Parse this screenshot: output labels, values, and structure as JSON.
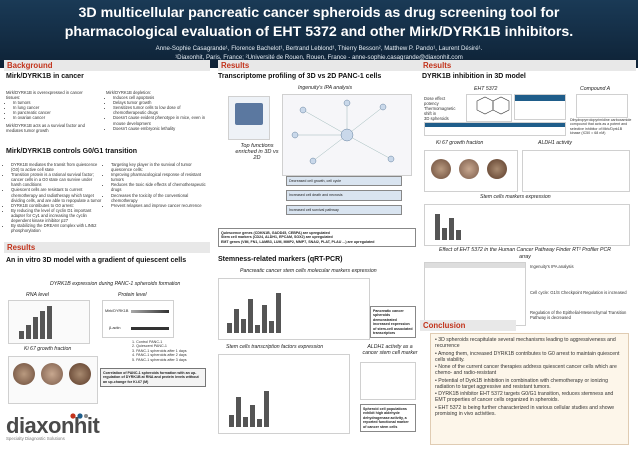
{
  "header": {
    "title_line1": "3D multicellular pancreatic cancer spheroids as drug screening tool for",
    "title_line2": "pharmacological evaluation of EHT 5372 and other Mirk/DYRK1B inhibitors.",
    "authors": "Anne-Sophie Casagrande¹, Florence Bachelot¹, Bertrand Leblond¹, Thierry Besson², Matthew P. Pando¹, Laurent Désiré¹.",
    "affiliation": "¹Diaxonhit, Paris, France; ²Université de Rouen, Rouen, France - anne-sophie.casagrande@diaxonhit.com"
  },
  "background": {
    "heading": "Background",
    "sub1": "Mirk/DYRK1B in cancer",
    "left_bullets": [
      "Mirk/DYRK1B is overexpressed in cancer tissues:",
      "In tumors",
      "In lung cancer",
      "In pancreatic cancer",
      "In ovarian cancer",
      "Mirk/DYRK1B acts as a survival factor and mediates tumor growth"
    ],
    "right_bullets": [
      "Mirk/DYRK1B depletion:",
      "Induces cell apoptosis",
      "Delays tumor growth",
      "Sensitizes tumor cells to low dose of chemotherapeutic drugs",
      "Doesn't cause evident phenotype in mice, even in mouse development",
      "Doesn't cause embryonic lethality"
    ],
    "sub2": "Mirk/DYRK1B controls G0/G1 transition",
    "g0_left": [
      "DYRK1B mediates the transit from quiescence (G0) to active cell state",
      "Transition protein is a rational survival factor; cancer cells in a G0 state can survive under harsh conditions",
      "Quiescent cells are resistant to current chemotherapy and radiotherapy which target dividing cells, and are able to repopulate a tumor",
      "DYRK1B contributes to G0 arrest:",
      "By reducing the level of cyclin D1 important adapter for Cy1 and increasing the cyclin dependent kinase inhibitor p27",
      "By stabilizing the DREAM complex with LIN52 phosphorylation"
    ],
    "g0_right": [
      "Targeting key player in the survival of tumor quiescence cells:",
      "Improving pharmacological response of resistant tumors",
      "Reduces the toxic side effects of chemotherapeutic drugs",
      "Decreases the toxicity of the conventional chemotherapy",
      "Prevent relapses and improve cancer recurrence"
    ]
  },
  "results_left": {
    "heading": "Results",
    "sub": "An in vitro 3D model with a gradient of quiescent cells",
    "caption": "DYRK1B expression during PANC-1 spheroids formation",
    "rna_label": "RNA level",
    "protein_label": "Protein level",
    "blot_label1": "Mirk/DYRK1B",
    "blot_label2": "β-actin",
    "legend": [
      "1. Control PANC-1",
      "2. Quiescent PANC-1",
      "3. PANC-1 spheroids after 1 days",
      "4. PANC-1 spheroids after 2 days",
      "5. PANC-1 spheroids after 3 days"
    ],
    "ki67_caption": "Ki 67 growth fraction",
    "ki67_note": "Correlation of PANC-1 spheroids formation with an up-regulation of DYRK1B at RNA and protein levels without an up-change for Ki-67 (M)"
  },
  "results_mid": {
    "heading": "Results",
    "sub": "Transcriptome profiling of 3D vs 2D PANC-1 cells",
    "ipa_caption": "Ingenuity's IPA analysis",
    "functions_caption": "Top functions enriched in 3D vs 2D",
    "fn_bars": [
      "Decreased cell growth, cell cycle",
      "Increased cell death and necrosis",
      "Increased cell survival pathway"
    ],
    "summary_box": [
      "Quiescence genes (CDKN1B, GADD45, CEBPA) are upregulated",
      "Stem cell markers (CD24, ALDH1, EPCAM, SOX2) are upregulated",
      "EMT genes (VIM, FN1, LAMB3, LUM, MMP2, MMP7, SNAI2, PLAT, PLAU ...) are upregulated"
    ],
    "stem_sub": "Stemness-related markers (qRT-PCR)",
    "stem_caption": "Pancreatic cancer stem cells molecular markers expression",
    "stem_note": "Pancreatic cancer spheroids demonstrated increased expression of stem-cell associated transcriptors",
    "stem_tf_caption": "Stem cells transcription factors expression",
    "aldh_caption": "ALDH1 activity as a cancer stem cell marker",
    "aldh_note": "Spheroid cell populations exhibit high aldehyde dehydrogenase activity, a reported functional marker of cancer stem cells"
  },
  "results_right": {
    "heading": "Results",
    "sub": "DYRK1B inhibition in 3D model",
    "compound1": "EHT 5372",
    "compound2": "Compound A",
    "compound_note": "Dose effect potency\nThermomagnetic shift in\n3D spheroids",
    "compound2_note": "Dihydropyrrolopyrimidine carboxamide compound that acts as a potent and selective inhibitor of Mirk/Dyrk1B kinase (IC50 = 68 nM)",
    "ki67_caption": "Ki 67 growth fraction",
    "aldh_caption": "ALDH1 activity",
    "stem_caption": "Stem cells markers expression",
    "ipa_title": "Effect of EHT 5372 in the Human Cancer Pathway Finder RT² Profiler PCR array",
    "ipa_side": "Ingenuity's IPA analysis",
    "ipa_side2": "Cell cycle: G1/S Checkpoint Regulation is increased",
    "ipa_side3": "Regulation of the Epithelial-Mesenchymal Transition Pathway is decreased"
  },
  "conclusion": {
    "heading": "Conclusion",
    "points": [
      "• 3D spheroids recapitulate several mechanisms leading to aggressiveness and recurrence",
      "• Among them, increased DYRK1B contributes to G0 arrest to maintain quiescent cells viability.",
      "• None of the current cancer therapies address quiescent cancer cells which are chemo- and radio-resistant",
      "• Potential of Dyrk1B inhibition in combination with chemotherapy or ionizing radiation to target aggressive and resistant tumors.",
      "• DYRK1B inhibitor EHT 5372 targets G0/G1 transition, reduces stemness and EMT properties of cancer cells organized in spheroids.",
      "• EHT 5372 is being further characterized in various cellular studies and showe promising in vivo activities."
    ]
  },
  "logo": {
    "name": "diaxonhit",
    "tagline": "Specialty Diagnostic Solutions"
  },
  "colors": {
    "banner": "#14304a",
    "heading_red": "#c2331b",
    "conclusion_bg": "#fdf6ea"
  }
}
